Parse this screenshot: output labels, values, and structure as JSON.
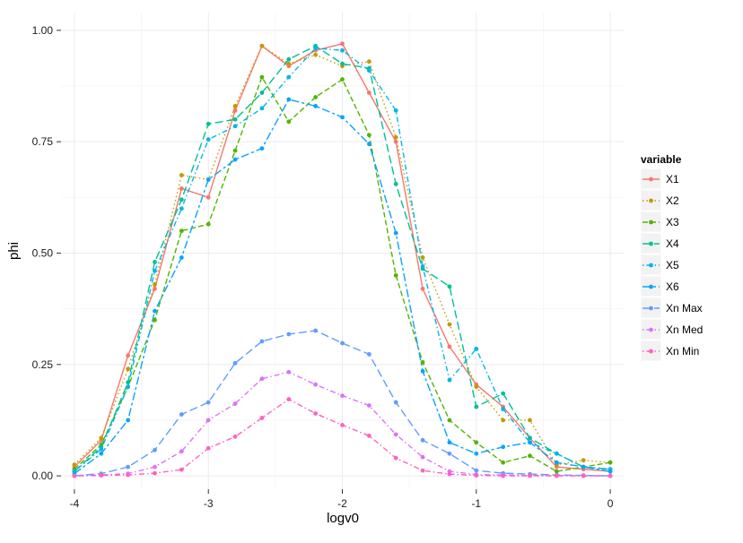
{
  "chart_data": {
    "type": "line",
    "xlabel": "logv0",
    "ylabel": "phi",
    "xlim": [
      -4.1,
      0.1
    ],
    "ylim": [
      -0.03,
      1.04
    ],
    "x_ticks": [
      -4,
      -3,
      -2,
      -1,
      0
    ],
    "x_tick_labels": [
      "-4",
      "-3",
      "-2",
      "-1",
      "0"
    ],
    "y_ticks": [
      0,
      0.25,
      0.5,
      0.75,
      1
    ],
    "y_tick_labels": [
      "0.00",
      "0.25",
      "0.50",
      "0.75",
      "1.00"
    ],
    "grid": true,
    "legend": {
      "title": "variable",
      "position": "right"
    },
    "x": [
      -4,
      -3.8,
      -3.6,
      -3.4,
      -3.2,
      -3,
      -2.8,
      -2.6,
      -2.4,
      -2.2,
      -2,
      -1.8,
      -1.6,
      -1.4,
      -1.2,
      -1,
      -0.8,
      -0.6,
      -0.4,
      -0.2,
      0
    ],
    "series": [
      {
        "name": "X1",
        "color": "#F8766D",
        "dash": "solid",
        "values": [
          0.02,
          0.08,
          0.27,
          0.42,
          0.645,
          0.625,
          0.82,
          0.965,
          0.92,
          0.955,
          0.97,
          0.86,
          0.75,
          0.42,
          0.29,
          0.205,
          0.155,
          0.085,
          0.02,
          0.015,
          0.01
        ]
      },
      {
        "name": "X2",
        "color": "#C49A00",
        "dash": "dot",
        "values": [
          0.025,
          0.085,
          0.24,
          0.43,
          0.675,
          0.665,
          0.83,
          0.965,
          0.925,
          0.945,
          0.92,
          0.93,
          0.76,
          0.49,
          0.34,
          0.2,
          0.125,
          0.125,
          0.025,
          0.035,
          0.03
        ]
      },
      {
        "name": "X3",
        "color": "#53B400",
        "dash": "dash",
        "values": [
          0.015,
          0.07,
          0.2,
          0.35,
          0.55,
          0.565,
          0.73,
          0.895,
          0.795,
          0.85,
          0.89,
          0.765,
          0.45,
          0.255,
          0.125,
          0.075,
          0.03,
          0.045,
          0.01,
          0.02,
          0.03
        ]
      },
      {
        "name": "X4",
        "color": "#00C094",
        "dash": "longdash",
        "values": [
          0.01,
          0.065,
          0.21,
          0.48,
          0.62,
          0.79,
          0.8,
          0.86,
          0.935,
          0.965,
          0.925,
          0.915,
          0.655,
          0.465,
          0.425,
          0.155,
          0.185,
          0.085,
          0.05,
          0.02,
          0.015
        ]
      },
      {
        "name": "X5",
        "color": "#00B6EB",
        "dash": "dotdash",
        "values": [
          0.01,
          0.06,
          0.2,
          0.46,
          0.6,
          0.755,
          0.785,
          0.825,
          0.895,
          0.96,
          0.955,
          0.91,
          0.82,
          0.47,
          0.215,
          0.285,
          0.15,
          0.075,
          0.05,
          0.02,
          0.015
        ]
      },
      {
        "name": "X6",
        "color": "#06A4FF",
        "dash": "twodash",
        "values": [
          0.005,
          0.05,
          0.125,
          0.37,
          0.49,
          0.665,
          0.71,
          0.735,
          0.845,
          0.83,
          0.805,
          0.745,
          0.545,
          0.235,
          0.075,
          0.05,
          0.065,
          0.075,
          0.03,
          0.02,
          0.01
        ]
      },
      {
        "name": "Xn Max",
        "color": "#619CFF",
        "dash": "longdash",
        "values": [
          0,
          0.005,
          0.02,
          0.058,
          0.138,
          0.165,
          0.253,
          0.302,
          0.318,
          0.326,
          0.298,
          0.273,
          0.165,
          0.08,
          0.05,
          0.012,
          0.006,
          0.004,
          0.002,
          0.001,
          0
        ]
      },
      {
        "name": "Xn Med",
        "color": "#DB72FB",
        "dash": "dotdash",
        "values": [
          0,
          0.002,
          0.005,
          0.02,
          0.055,
          0.125,
          0.162,
          0.218,
          0.233,
          0.205,
          0.18,
          0.158,
          0.093,
          0.042,
          0.01,
          0.003,
          0.002,
          0.001,
          0.001,
          0,
          0
        ]
      },
      {
        "name": "Xn Min",
        "color": "#FF61C3",
        "dash": "dotdash",
        "values": [
          0,
          0.001,
          0.002,
          0.006,
          0.014,
          0.062,
          0.088,
          0.13,
          0.172,
          0.14,
          0.114,
          0.09,
          0.04,
          0.012,
          0.004,
          0.001,
          0,
          0,
          0,
          0,
          0
        ]
      }
    ]
  }
}
